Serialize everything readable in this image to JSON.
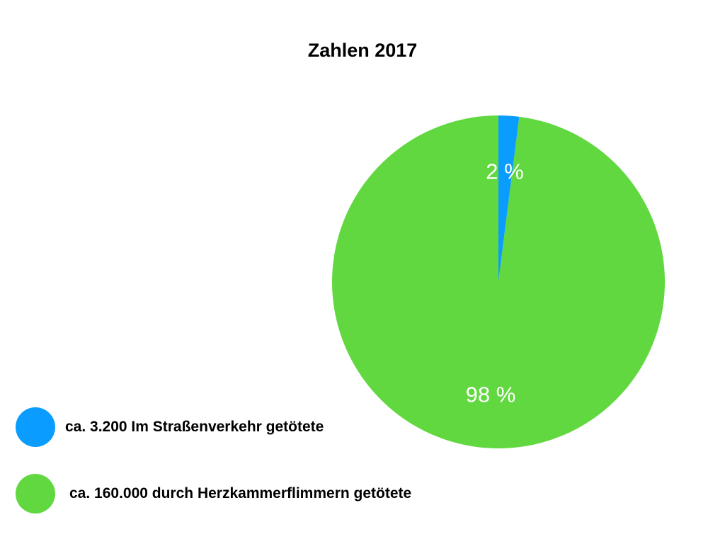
{
  "chart_data": {
    "type": "pie",
    "title": "Zahlen 2017",
    "slices": [
      {
        "name": "ca. 3.200 Im Straßenverkehr getötete",
        "value": 2,
        "label": "2 %",
        "color": "#0a9dff"
      },
      {
        "name": "ca. 160.000 durch Herzkammerflimmern getötete",
        "value": 98,
        "label": "98 %",
        "color": "#62d840"
      }
    ],
    "legend_position": "bottom-left"
  }
}
